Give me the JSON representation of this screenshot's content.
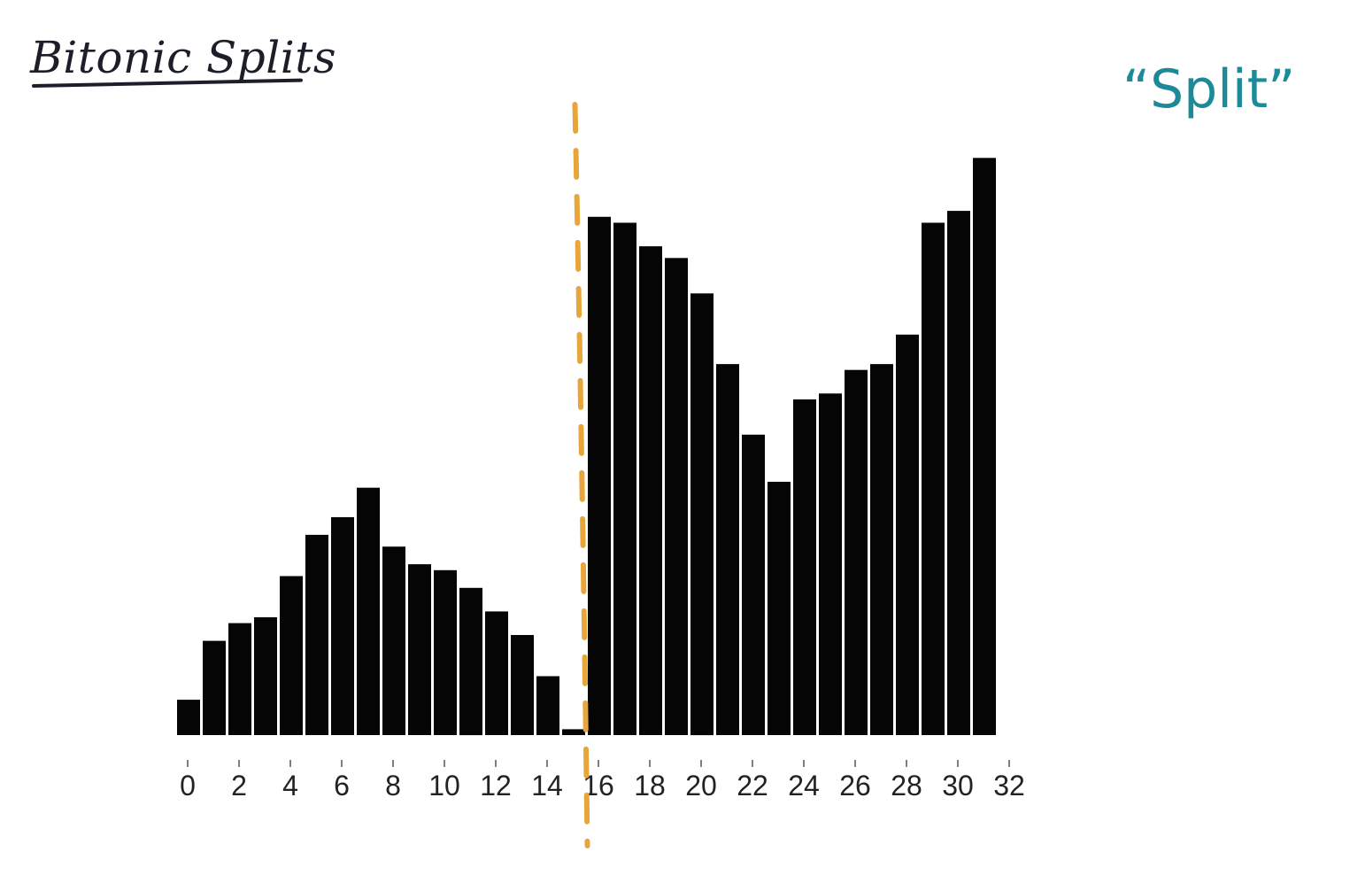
{
  "title": "Bitonic Splits",
  "annotation": "“Split”",
  "colors": {
    "bars": "#050505",
    "split_line": "#e8a63a",
    "title_ink": "#1c1f2a",
    "annotation_ink": "#1d8a99"
  },
  "chart_data": {
    "type": "bar",
    "x": [
      0,
      1,
      2,
      3,
      4,
      5,
      6,
      7,
      8,
      9,
      10,
      11,
      12,
      13,
      14,
      15,
      16,
      17,
      18,
      19,
      20,
      21,
      22,
      23,
      24,
      25,
      26,
      27,
      28,
      29,
      30,
      31
    ],
    "values": [
      6,
      16,
      19,
      20,
      27,
      34,
      37,
      42,
      32,
      29,
      28,
      25,
      21,
      17,
      10,
      1,
      88,
      87,
      83,
      81,
      75,
      63,
      51,
      43,
      57,
      58,
      62,
      63,
      68,
      87,
      89,
      98
    ],
    "xlim": [
      0,
      32
    ],
    "ylim": [
      0,
      100
    ],
    "xticks": [
      "0",
      "2",
      "4",
      "6",
      "8",
      "10",
      "12",
      "14",
      "16",
      "18",
      "20",
      "22",
      "24",
      "26",
      "28",
      "30",
      "32"
    ],
    "split_at": 15.5,
    "xlabel": "",
    "ylabel": "",
    "grid": false,
    "legend": "none"
  }
}
